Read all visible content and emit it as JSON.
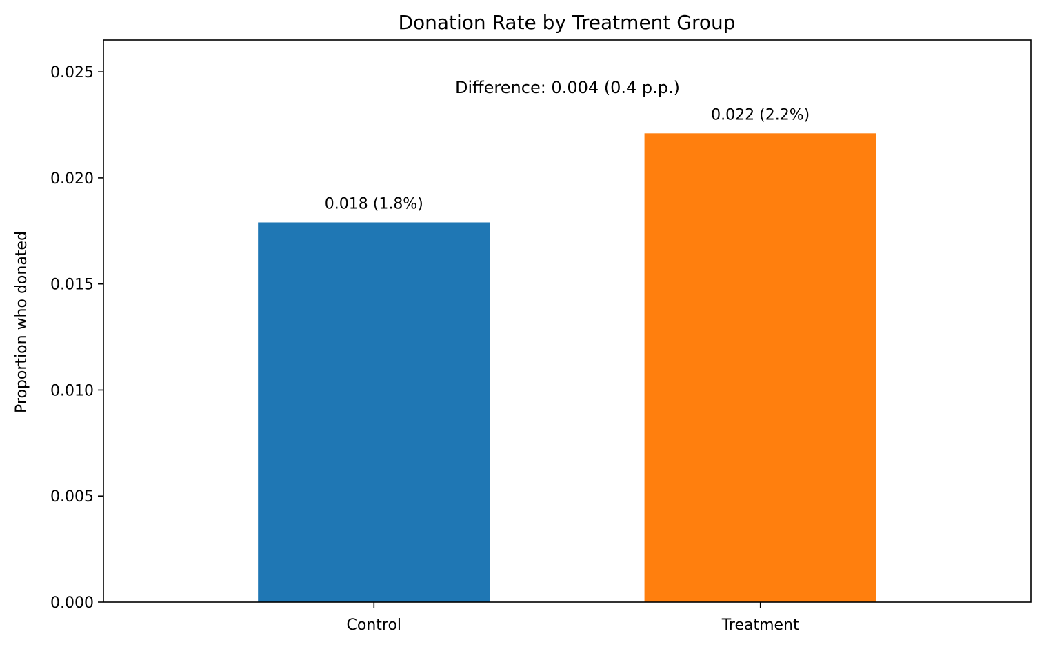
{
  "chart_data": {
    "type": "bar",
    "title": "Donation Rate by Treatment Group",
    "xlabel": "",
    "ylabel": "Proportion who donated",
    "categories": [
      "Control",
      "Treatment"
    ],
    "values": [
      0.0179,
      0.0221
    ],
    "bar_labels": [
      "0.018 (1.8%)",
      "0.022 (2.2%)"
    ],
    "colors": [
      "#1f77b4",
      "#ff7f0e"
    ],
    "ylim": [
      0,
      0.0265
    ],
    "yticks": [
      0.0,
      0.005,
      0.01,
      0.015,
      0.02,
      0.025
    ],
    "ytick_labels": [
      "0.000",
      "0.005",
      "0.010",
      "0.015",
      "0.020",
      "0.025"
    ],
    "annotation": "Difference: 0.004 (0.4 p.p.)",
    "grid": false,
    "legend": "none"
  }
}
